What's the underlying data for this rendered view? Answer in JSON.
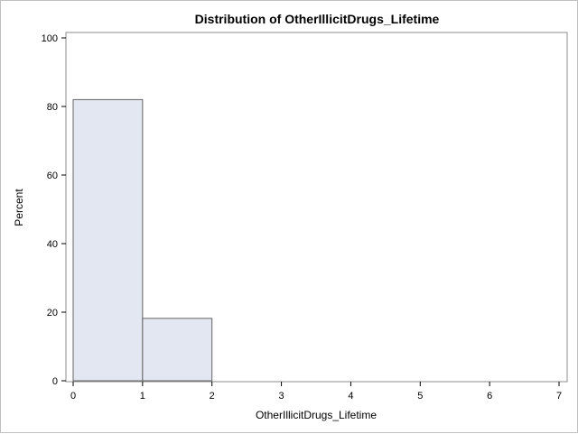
{
  "chart_data": {
    "type": "bar",
    "title": "Distribution of OtherIllicitDrugs_Lifetime",
    "xlabel": "OtherIllicitDrugs_Lifetime",
    "ylabel": "Percent",
    "xlim": [
      0,
      7
    ],
    "ylim": [
      0,
      100
    ],
    "x_ticks": [
      "0",
      "1",
      "2",
      "3",
      "4",
      "5",
      "6",
      "7"
    ],
    "y_ticks": [
      "0",
      "20",
      "40",
      "60",
      "80",
      "100"
    ],
    "bins": [
      {
        "start": 0,
        "end": 1,
        "value": 82
      },
      {
        "start": 1,
        "end": 2,
        "value": 18.2
      }
    ],
    "colors": {
      "bar_fill": "#e3e7f1",
      "bar_stroke": "#636363"
    },
    "grid": false,
    "legend": "none"
  }
}
